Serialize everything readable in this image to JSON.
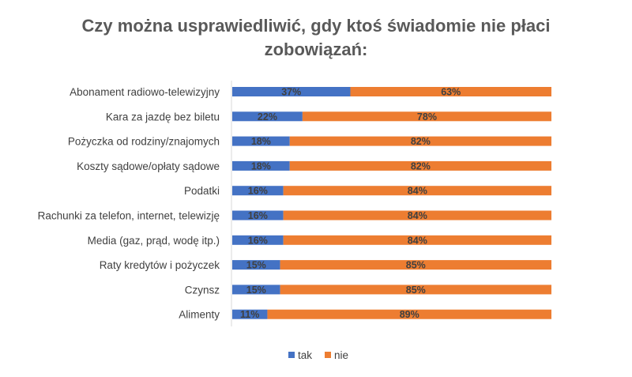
{
  "chart_data": {
    "type": "bar",
    "orientation": "horizontal",
    "stacked": "100%",
    "title": "Czy można usprawiedliwić, gdy ktoś świadomie nie płaci zobowiązań:",
    "title_lines": [
      "Czy można usprawiedliwić, gdy ktoś świadomie nie płaci",
      "zobowiązań:"
    ],
    "categories": [
      "Abonament radiowo-telewizyjny",
      "Kara za jazdę bez biletu",
      "Pożyczka od rodziny/znajomych",
      "Koszty sądowe/opłaty sądowe",
      "Podatki",
      "Rachunki za telefon, internet, telewizję",
      "Media (gaz, prąd, wodę itp.)",
      "Raty kredytów i pożyczek",
      "Czynsz",
      "Alimenty"
    ],
    "series": [
      {
        "name": "tak",
        "color": "#4472C4",
        "values": [
          37,
          22,
          18,
          18,
          16,
          16,
          16,
          15,
          15,
          11
        ]
      },
      {
        "name": "nie",
        "color": "#ED7D31",
        "values": [
          63,
          78,
          82,
          82,
          84,
          84,
          84,
          85,
          85,
          89
        ]
      }
    ],
    "value_suffix": "%",
    "xlim": [
      0,
      100
    ],
    "grid": false,
    "legend_position": "bottom"
  }
}
